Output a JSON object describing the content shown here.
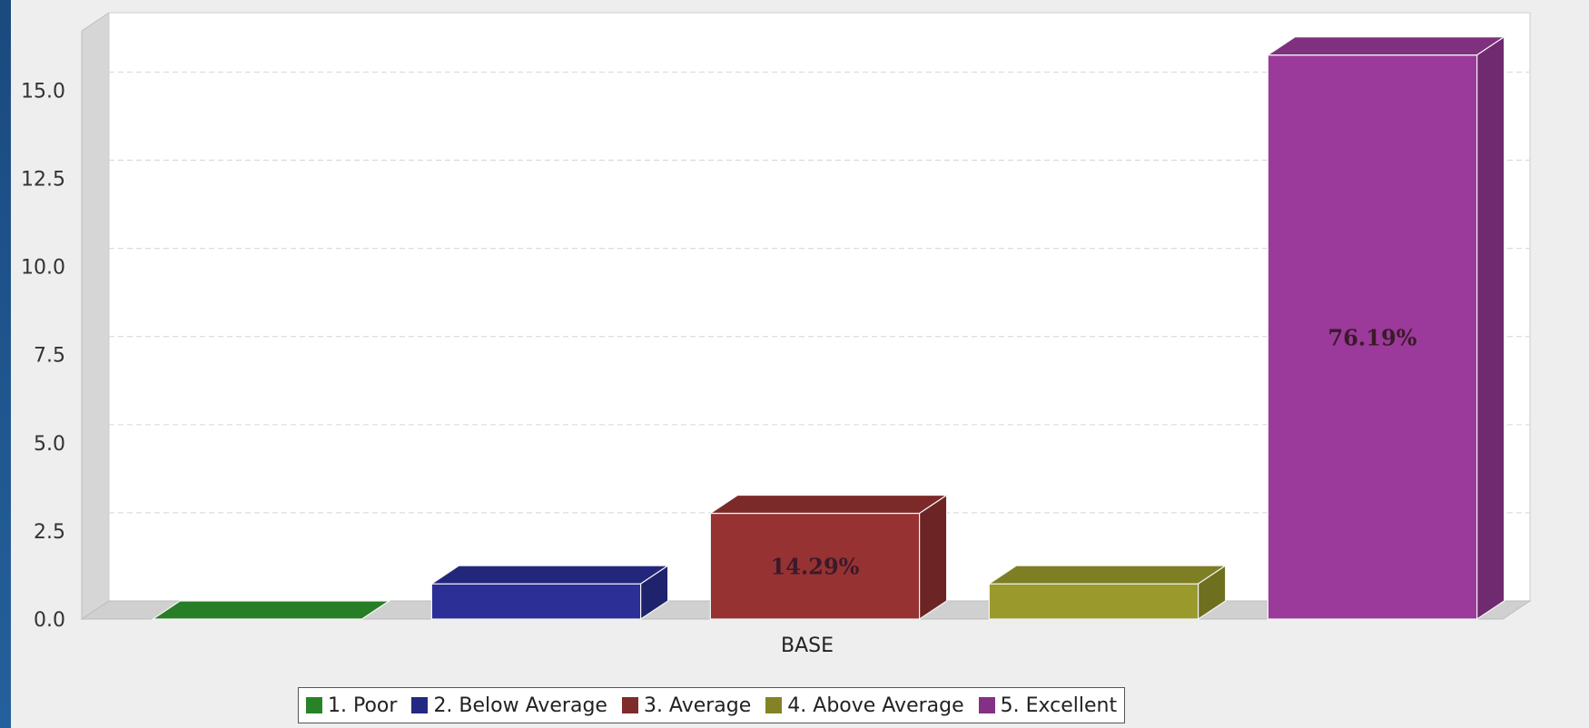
{
  "chart_data": {
    "type": "bar",
    "title": "",
    "xlabel": "",
    "ylabel": "",
    "categories": [
      "BASE"
    ],
    "series": [
      {
        "name": "1. Poor",
        "values": [
          0
        ],
        "color": "#2f9a2f",
        "label": ""
      },
      {
        "name": "2. Below Average",
        "values": [
          1
        ],
        "color": "#2b2f96",
        "label": ""
      },
      {
        "name": "3. Average",
        "values": [
          3
        ],
        "color": "#963232",
        "label": "14.29%"
      },
      {
        "name": "4. Above Average",
        "values": [
          1
        ],
        "color": "#9a9a2c",
        "label": ""
      },
      {
        "name": "5. Excellent",
        "values": [
          16
        ],
        "color": "#9b3a9b",
        "label": "76.19%"
      }
    ],
    "ylim": [
      0,
      17.2
    ],
    "yticks": [
      "0.0",
      "2.5",
      "5.0",
      "7.5",
      "10.0",
      "12.5",
      "15.0"
    ],
    "grid": true,
    "legend_position": "bottom"
  }
}
